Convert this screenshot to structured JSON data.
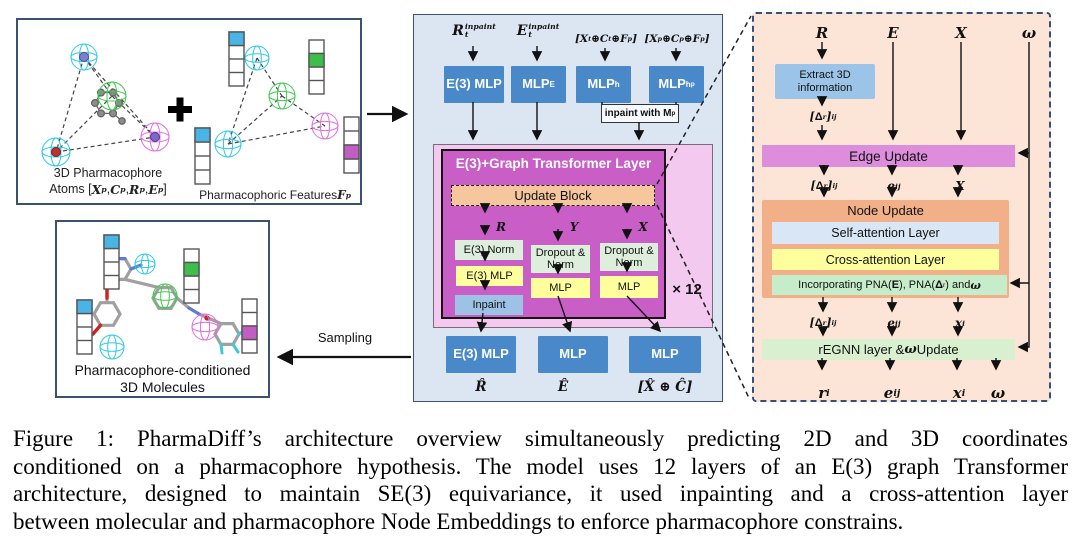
{
  "left_top": {
    "caption1": "3D Pharmacophore",
    "caption2": [
      {
        "t": "Atoms ["
      },
      {
        "t": "X",
        "v": "m"
      },
      {
        "t": "p",
        "v": "msub"
      },
      {
        "t": ", "
      },
      {
        "t": "C",
        "v": "m"
      },
      {
        "t": "p",
        "v": "msub"
      },
      {
        "t": ", "
      },
      {
        "t": "R",
        "v": "m"
      },
      {
        "t": "p",
        "v": "msub"
      },
      {
        "t": ",  "
      },
      {
        "t": "E",
        "v": "m"
      },
      {
        "t": "p",
        "v": "msub"
      },
      {
        "t": "]"
      }
    ],
    "caption_right": [
      {
        "t": "Pharmacophoric Features "
      },
      {
        "t": "F",
        "v": "m"
      },
      {
        "t": "p",
        "v": "msub"
      }
    ]
  },
  "left_bottom": {
    "caption1": "Pharmacophore-conditioned",
    "caption2": "3D Molecules"
  },
  "sampling_label": "Sampling",
  "mid": {
    "in_r": [
      {
        "t": "R",
        "v": "m"
      },
      {
        "v": "stack",
        "sup": "inpaint",
        "sub": "t"
      }
    ],
    "in_e": [
      {
        "t": "E",
        "v": "m"
      },
      {
        "v": "stack",
        "sup": "inpaint",
        "sub": "t"
      }
    ],
    "in_xc": [
      {
        "t": "[",
        "v": "m"
      },
      {
        "t": "X",
        "v": "m"
      },
      {
        "t": "t",
        "v": "msub"
      },
      {
        "t": " ⊕ ",
        "v": "m"
      },
      {
        "t": "C",
        "v": "m"
      },
      {
        "t": "t",
        "v": "msub"
      },
      {
        "t": " ⊕",
        "v": "m"
      },
      {
        "t": "F",
        "v": "m"
      },
      {
        "t": "p",
        "v": "msub"
      },
      {
        "t": "]",
        "v": "m"
      }
    ],
    "in_xcp": [
      {
        "t": "[",
        "v": "m"
      },
      {
        "t": "X",
        "v": "m"
      },
      {
        "t": "p",
        "v": "msub"
      },
      {
        "t": "⊕ ",
        "v": "m"
      },
      {
        "t": "C",
        "v": "m"
      },
      {
        "t": "p",
        "v": "msub"
      },
      {
        "t": "⊕",
        "v": "m"
      },
      {
        "t": "F",
        "v": "m"
      },
      {
        "t": "p",
        "v": "msub"
      },
      {
        "t": "]",
        "v": "m"
      }
    ],
    "mlp1": "E(3) MLP",
    "mlp2": [
      {
        "t": "MLP"
      },
      {
        "t": "E",
        "v": "sub"
      }
    ],
    "mlp3": [
      {
        "t": "MLP"
      },
      {
        "t": "h",
        "v": "sub"
      }
    ],
    "mlp4": [
      {
        "t": "MLP"
      },
      {
        "t": "h",
        "v": "sub"
      },
      {
        "t": "p",
        "v": "sub2"
      }
    ],
    "inpaint_with": [
      {
        "t": "inpaint with M"
      },
      {
        "t": "p",
        "v": "sub"
      }
    ],
    "transformer_title": "E(3)+Graph Transformer Layer",
    "update_block": "Update Block",
    "col_r": "R",
    "col_y": "Y",
    "col_x": "X",
    "e3_norm": "E(3) Norm",
    "e3_mlp": "E(3) MLP",
    "inpaint": "Inpaint",
    "dropout": "Dropout & Norm",
    "mlp_small": "MLP",
    "times12": "× 12",
    "out_mlp1": "E(3) MLP",
    "out_mlp2": "MLP",
    "out_mlp3": "MLP",
    "out_r": "R̂",
    "out_e": "Ê",
    "out_xc": "[X̂ ⊕ Ĉ]"
  },
  "right": {
    "in_r": "R",
    "in_e": "E",
    "in_x": "X",
    "in_w": "ω",
    "extract": "Extract 3D information",
    "delta_ij": [
      {
        "t": "[",
        "v": "m"
      },
      {
        "t": "Δ",
        "v": "b"
      },
      {
        "t": "r",
        "v": "msub"
      },
      {
        "t": "]",
        "v": "m"
      },
      {
        "t": "ij",
        "v": "msub"
      }
    ],
    "edge_update": "Edge Update",
    "e_ij": [
      {
        "t": "e",
        "v": "m"
      },
      {
        "t": "ij",
        "v": "msub"
      }
    ],
    "x_mid": "X",
    "node_update": "Node Update",
    "self_attn": "Self-attention Layer",
    "cross_attn": "Cross-attention Layer",
    "incorporating": [
      {
        "t": "Incorporating PNA("
      },
      {
        "t": "E",
        "v": "b"
      },
      {
        "t": "), PNA("
      },
      {
        "t": "Δ",
        "v": "b"
      },
      {
        "t": "r",
        "v": "sub"
      },
      {
        "t": ") and "
      },
      {
        "t": "ω",
        "v": "mb"
      }
    ],
    "x_i": [
      {
        "t": "x",
        "v": "m"
      },
      {
        "t": "i",
        "v": "msub"
      }
    ],
    "regnn": [
      {
        "t": "rEGNN layer & "
      },
      {
        "t": "ω",
        "v": "mb"
      },
      {
        "t": " Update"
      }
    ],
    "out_r": [
      {
        "t": "r",
        "v": "mb"
      },
      {
        "t": "i",
        "v": "msub"
      }
    ],
    "out_e": [
      {
        "t": "e",
        "v": "mb"
      },
      {
        "t": "ij",
        "v": "msub"
      }
    ],
    "out_x": [
      {
        "t": "x",
        "v": "mb"
      },
      {
        "t": "i",
        "v": "msub"
      }
    ],
    "out_w": "ω"
  },
  "caption": {
    "lines": [
      "Figure 1: PharmaDiff’s architecture overview simultaneously predicting 2D and 3D coordinates",
      "conditioned on a pharmacophore hypothesis. The model uses 12 layers of an E(3) graph Transformer",
      "architecture, designed to maintain SE(3) equivariance, it used inpainting and a cross-attention layer",
      "between molecular and pharmacophore Node Embeddings to enforce pharmacophore constrains."
    ]
  },
  "colors": {
    "accent_blue": "#4a89c9",
    "panel_blue": "#dce6f2",
    "panel_peach": "#fce5d6",
    "pink_outer": "#f3c9ef",
    "magenta_block": "#c95fc6",
    "update_peach": "#f6c79c",
    "yellow": "#ffff9d",
    "green_light": "#ddeedd",
    "inpaint_blue": "#9cc3e5",
    "edge_update_bar": "#de8cdc",
    "node_update_box": "#f2b088",
    "self_attn_bar": "#d9e6f5",
    "incorporating_bar": "#c6edca",
    "regnn_bar": "#d9f0d0"
  }
}
